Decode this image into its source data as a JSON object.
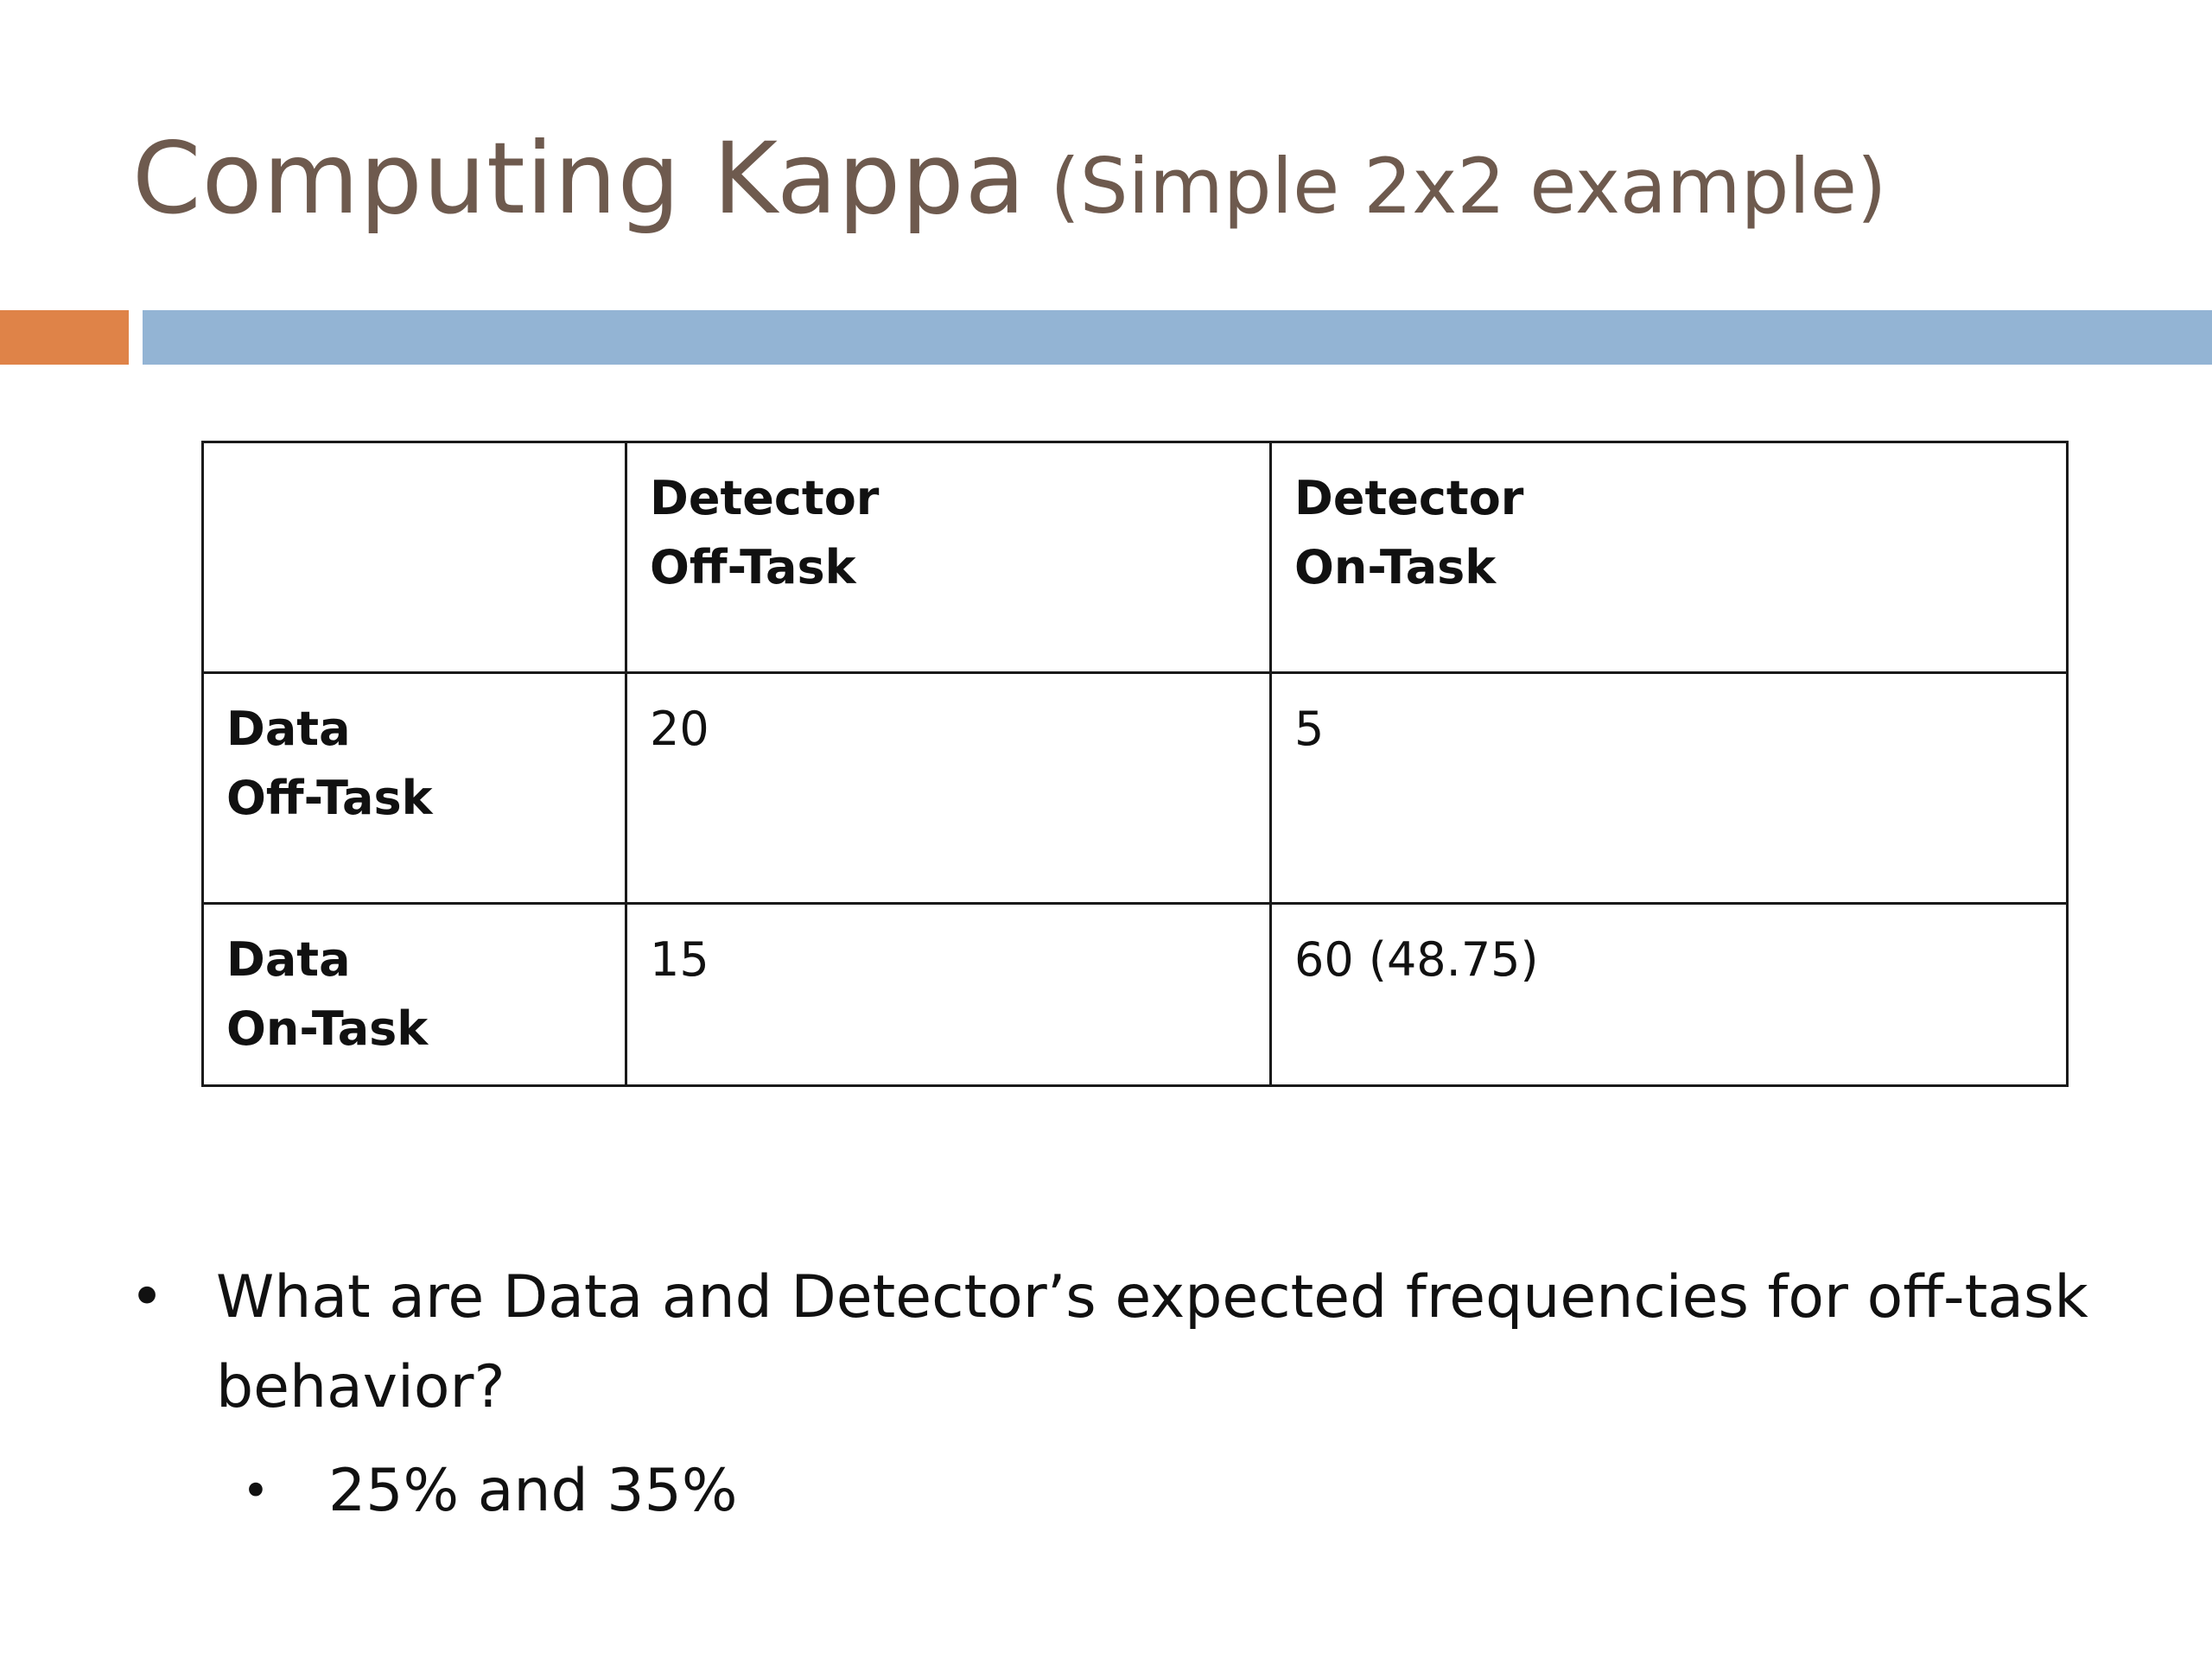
{
  "slide": {
    "title_main": "Computing Kappa",
    "title_sub": "(Simple 2x2 example)",
    "colors": {
      "title": "#6e5a4e",
      "accent_orange": "#df8348",
      "accent_blue": "#93b4d4"
    }
  },
  "table": {
    "header": {
      "corner": "",
      "col1_line1": "Detector",
      "col1_line2": "Off-Task",
      "col2_line1": "Detector",
      "col2_line2": "On-Task"
    },
    "rows": [
      {
        "label_line1": "Data",
        "label_line2": "Off-Task",
        "col1": "20",
        "col2": "5"
      },
      {
        "label_line1": "Data",
        "label_line2": "On-Task",
        "col1": "15",
        "col2": "60 (48.75)"
      }
    ]
  },
  "bullets": {
    "bullet_char": "•",
    "question": "What are Data and Detector’s expected frequencies for off-task behavior?",
    "answer": "25% and 35%"
  }
}
